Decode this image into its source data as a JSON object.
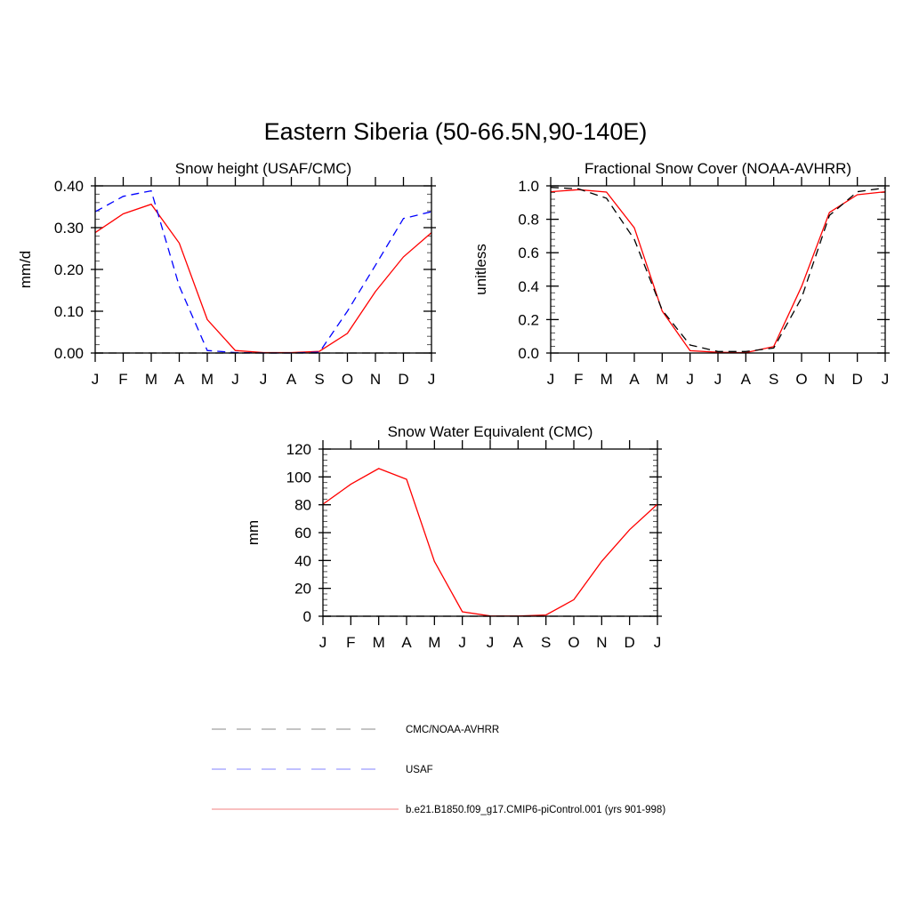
{
  "title": "Eastern Siberia (50-66.5N,90-140E)",
  "colors": {
    "model": "#ff0000",
    "usaf": "#0000ff",
    "cmc": "#000000",
    "legend_model": "#f08080",
    "legend_usaf": "#8080ff",
    "legend_cmc": "#888888"
  },
  "chart_data": [
    {
      "type": "line",
      "title": "Snow height (USAF/CMC)",
      "ylabel": "mm/d",
      "categories": [
        "J",
        "F",
        "M",
        "A",
        "M",
        "J",
        "J",
        "A",
        "S",
        "O",
        "N",
        "D",
        "J"
      ],
      "ylim": [
        0,
        0.4
      ],
      "yticks": [
        "0.00",
        "0.10",
        "0.20",
        "0.30",
        "0.40"
      ],
      "series": [
        {
          "name": "b.e21.B1850.f09_g17.CMIP6-piControl.001 (yrs 901-998)",
          "style": "solid",
          "color": "#ff0000",
          "values": [
            0.288,
            0.333,
            0.356,
            0.263,
            0.08,
            0.006,
            0.001,
            0.001,
            0.004,
            0.047,
            0.147,
            0.23,
            0.288
          ]
        },
        {
          "name": "USAF",
          "style": "dashed",
          "color": "#0000ff",
          "values": [
            0.338,
            0.375,
            0.388,
            0.16,
            0.006,
            0.001,
            0.0,
            0.0,
            0.002,
            0.1,
            0.21,
            0.322,
            0.338
          ]
        },
        {
          "name": "CMC/NOAA-AVHRR",
          "style": "dashed",
          "color": "#000000",
          "values": [
            0,
            0,
            0,
            0,
            0,
            0,
            0,
            0,
            0,
            0,
            0,
            0,
            0
          ]
        }
      ]
    },
    {
      "type": "line",
      "title": "Fractional Snow Cover (NOAA-AVHRR)",
      "ylabel": "unitless",
      "categories": [
        "J",
        "F",
        "M",
        "A",
        "M",
        "J",
        "J",
        "A",
        "S",
        "O",
        "N",
        "D",
        "J"
      ],
      "ylim": [
        0,
        1.0
      ],
      "yticks": [
        "0.0",
        "0.2",
        "0.4",
        "0.6",
        "0.8",
        "1.0"
      ],
      "series": [
        {
          "name": "b.e21.B1850.f09_g17.CMIP6-piControl.001 (yrs 901-998)",
          "style": "solid",
          "color": "#ff0000",
          "values": [
            0.965,
            0.977,
            0.963,
            0.749,
            0.251,
            0.014,
            0.004,
            0.002,
            0.039,
            0.398,
            0.841,
            0.947,
            0.965
          ]
        },
        {
          "name": "CMC/NOAA-AVHRR",
          "style": "dashed",
          "color": "#000000",
          "values": [
            0.991,
            0.982,
            0.926,
            0.68,
            0.257,
            0.048,
            0.009,
            0.009,
            0.03,
            0.33,
            0.823,
            0.965,
            0.988
          ]
        }
      ]
    },
    {
      "type": "line",
      "title": "Snow Water Equivalent (CMC)",
      "ylabel": "mm",
      "categories": [
        "J",
        "F",
        "M",
        "A",
        "M",
        "J",
        "J",
        "A",
        "S",
        "O",
        "N",
        "D",
        "J"
      ],
      "ylim": [
        0,
        120
      ],
      "yticks": [
        "0",
        "20",
        "40",
        "60",
        "80",
        "100",
        "120"
      ],
      "series": [
        {
          "name": "b.e21.B1850.f09_g17.CMIP6-piControl.001 (yrs 901-998)",
          "style": "solid",
          "color": "#ff0000",
          "values": [
            80.4,
            94.7,
            106,
            98.3,
            39.4,
            3.2,
            0.2,
            0.1,
            0.9,
            11.9,
            39.4,
            62.1,
            80.4
          ]
        },
        {
          "name": "CMC/NOAA-AVHRR",
          "style": "dashed",
          "color": "#000000",
          "values": [
            0,
            0,
            0,
            0,
            0,
            0,
            0,
            0,
            0,
            0,
            0,
            0,
            0
          ]
        }
      ]
    }
  ],
  "legend": [
    {
      "label": "CMC/NOAA-AVHRR",
      "style": "dashed",
      "color": "#888888"
    },
    {
      "label": "USAF",
      "style": "dashed",
      "color": "#8080ff"
    },
    {
      "label": "b.e21.B1850.f09_g17.CMIP6-piControl.001 (yrs 901-998)",
      "style": "solid",
      "color": "#f08080"
    }
  ]
}
